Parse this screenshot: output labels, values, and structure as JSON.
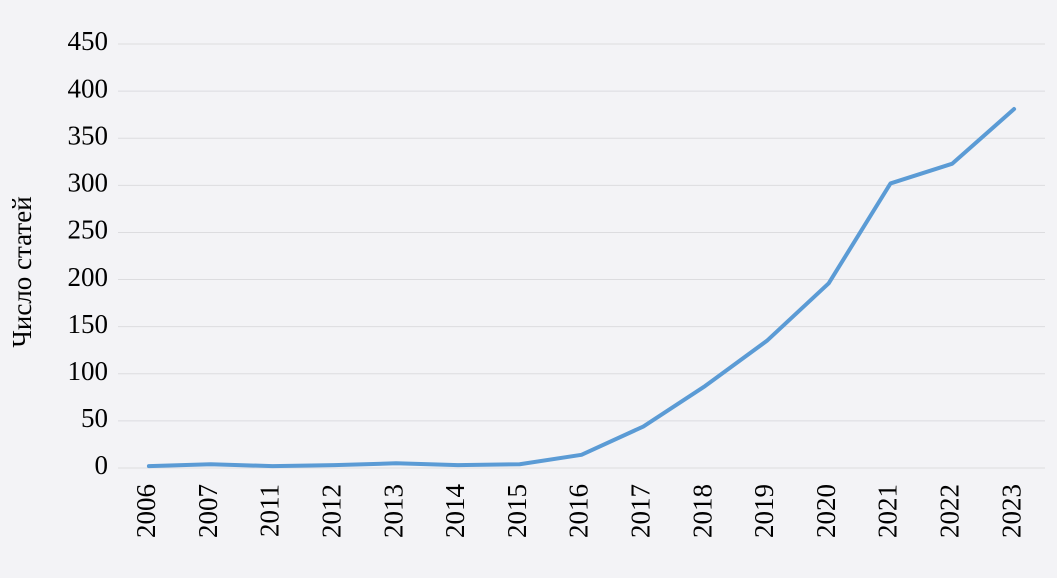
{
  "chart_data": {
    "type": "line",
    "ylabel": "Число статей",
    "categories": [
      "2006",
      "2007",
      "2011",
      "2012",
      "2013",
      "2014",
      "2015",
      "2016",
      "2017",
      "2018",
      "2019",
      "2020",
      "2021",
      "2022",
      "2023"
    ],
    "values": [
      2,
      4,
      2,
      3,
      5,
      3,
      4,
      14,
      44,
      87,
      135,
      196,
      302,
      323,
      381
    ],
    "color": "#5b9bd5",
    "ylim": [
      0,
      450
    ],
    "yticks": [
      0,
      50,
      100,
      150,
      200,
      250,
      300,
      350,
      400,
      450
    ],
    "grid": true
  }
}
